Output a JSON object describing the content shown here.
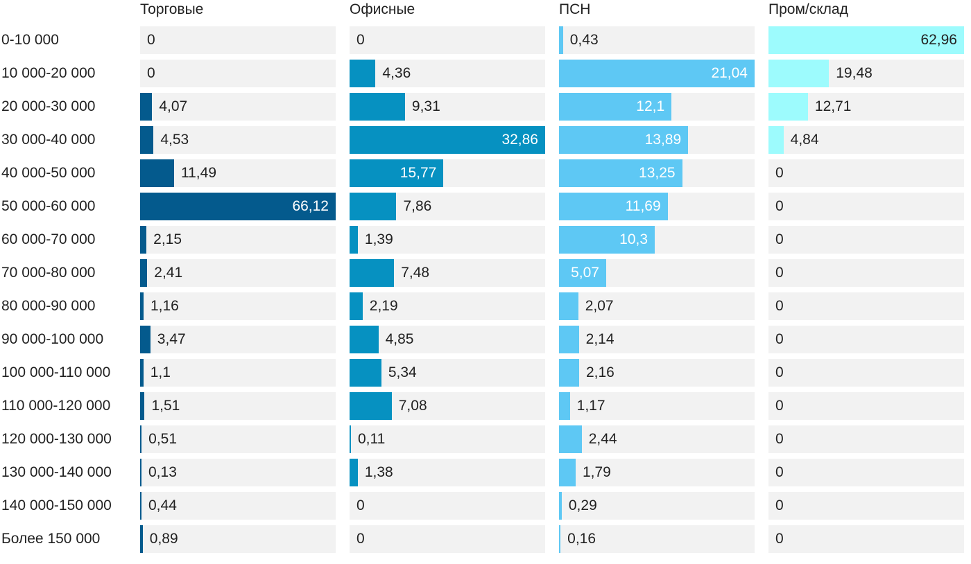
{
  "chart_data": {
    "type": "bar",
    "orientation": "horizontal",
    "layout": "small-multiples",
    "categories": [
      "0-10 000",
      "10 000-20 000",
      "20 000-30 000",
      "30 000-40 000",
      "40 000-50 000",
      "50 000-60 000",
      "60 000-70 000",
      "70 000-80 000",
      "80 000-90 000",
      "90 000-100 000",
      "100 000-110 000",
      "110 000-120 000",
      "120 000-130 000",
      "130 000-140 000",
      "140 000-150 000",
      "Более 150 000"
    ],
    "series": [
      {
        "name": "Торговые",
        "color": "#045a8d",
        "values": [
          0,
          0,
          4.07,
          4.53,
          11.49,
          66.12,
          2.15,
          2.41,
          1.16,
          3.47,
          1.1,
          1.51,
          0.51,
          0.13,
          0.44,
          0.89
        ],
        "labels": [
          "0",
          "0",
          "4,07",
          "4,53",
          "11,49",
          "66,12",
          "2,15",
          "2,41",
          "1,16",
          "3,47",
          "1,1",
          "1,51",
          "0,51",
          "0,13",
          "0,44",
          "0,89"
        ]
      },
      {
        "name": "Офисные",
        "color": "#0691c1",
        "values": [
          0,
          4.36,
          9.31,
          32.86,
          15.77,
          7.86,
          1.39,
          7.48,
          2.19,
          4.85,
          5.34,
          7.08,
          0.11,
          1.38,
          0,
          0
        ],
        "labels": [
          "0",
          "4,36",
          "9,31",
          "32,86",
          "15,77",
          "7,86",
          "1,39",
          "7,48",
          "2,19",
          "4,85",
          "5,34",
          "7,08",
          "0,11",
          "1,38",
          "0",
          "0"
        ]
      },
      {
        "name": "ПСН",
        "color": "#5ec8f4",
        "values": [
          0.43,
          21.04,
          12.1,
          13.89,
          13.25,
          11.69,
          10.3,
          5.07,
          2.07,
          2.14,
          2.16,
          1.17,
          2.44,
          1.79,
          0.29,
          0.16
        ],
        "labels": [
          "0,43",
          "21,04",
          "12,1",
          "13,89",
          "13,25",
          "11,69",
          "10,3",
          "5,07",
          "2,07",
          "2,14",
          "2,16",
          "1,17",
          "2,44",
          "1,79",
          "0,29",
          "0,16"
        ]
      },
      {
        "name": "Пром/склад",
        "color": "#9dfbfd",
        "values": [
          62.96,
          19.48,
          12.71,
          4.84,
          0,
          0,
          0,
          0,
          0,
          0,
          0,
          0,
          0,
          0,
          0,
          0
        ],
        "labels": [
          "62,96",
          "19,48",
          "12,71",
          "4,84",
          "0",
          "0",
          "0",
          "0",
          "0",
          "0",
          "0",
          "0",
          "0",
          "0",
          "0",
          "0"
        ]
      }
    ],
    "inside_threshold": [
      40,
      15,
      3.5,
      20
    ],
    "title": "",
    "xlabel": "",
    "ylabel": ""
  }
}
